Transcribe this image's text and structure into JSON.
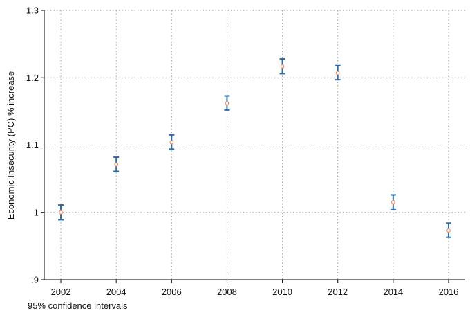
{
  "chart_data": {
    "type": "scatter",
    "title": "",
    "xlabel": "",
    "ylabel": "Economic Insecurity (PC) % increase",
    "note": "95% confidence intervals",
    "x_ticks": [
      "2002",
      "2004",
      "2006",
      "2008",
      "2010",
      "2012",
      "2014",
      "2016"
    ],
    "y_ticks": [
      {
        "value": 0.9,
        "label": ".9"
      },
      {
        "value": 1.0,
        "label": "1"
      },
      {
        "value": 1.1,
        "label": "1.1"
      },
      {
        "value": 1.2,
        "label": "1.2"
      },
      {
        "value": 1.3,
        "label": "1.3"
      }
    ],
    "xlim": [
      2001.4,
      2016.6
    ],
    "ylim": [
      0.9,
      1.3
    ],
    "grid": true,
    "legend": "none",
    "colors": {
      "ci": "#2f6ea8",
      "point": "#e8916b",
      "grid": "#9a9a9a",
      "axis": "#000000"
    },
    "points": [
      {
        "x": 2002,
        "y": 1.0,
        "lo": 0.989,
        "hi": 1.011
      },
      {
        "x": 2004,
        "y": 1.071,
        "lo": 1.061,
        "hi": 1.082
      },
      {
        "x": 2006,
        "y": 1.104,
        "lo": 1.094,
        "hi": 1.115
      },
      {
        "x": 2008,
        "y": 1.162,
        "lo": 1.152,
        "hi": 1.173
      },
      {
        "x": 2010,
        "y": 1.217,
        "lo": 1.206,
        "hi": 1.228
      },
      {
        "x": 2012,
        "y": 1.207,
        "lo": 1.197,
        "hi": 1.218
      },
      {
        "x": 2014,
        "y": 1.015,
        "lo": 1.004,
        "hi": 1.026
      },
      {
        "x": 2016,
        "y": 0.973,
        "lo": 0.963,
        "hi": 0.984
      }
    ]
  }
}
